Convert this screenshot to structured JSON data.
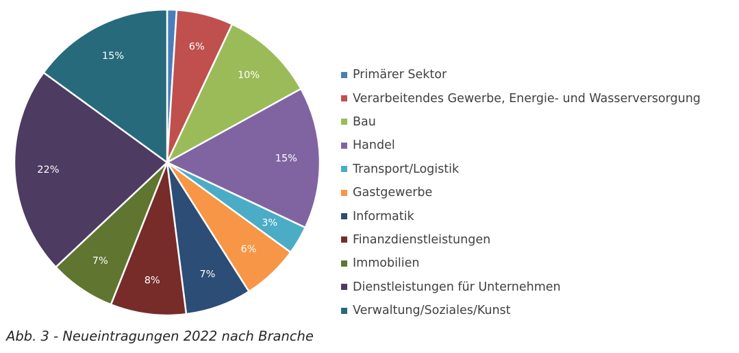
{
  "chart_data": {
    "type": "pie",
    "categories": [
      "Primärer Sektor",
      "Verarbeitendes Gewerbe, Energie- und Wasserversorgung",
      "Bau",
      "Handel",
      "Transport/Logistik",
      "Gastgewerbe",
      "Informatik",
      "Finanzdienstleistungen",
      "Immobilien",
      "Dienstleistungen für Unternehmen",
      "Verwaltung/Soziales/Kunst"
    ],
    "values": [
      1,
      6,
      10,
      15,
      3,
      6,
      7,
      8,
      7,
      22,
      15
    ],
    "data_labels": [
      "",
      "6%",
      "10%",
      "15%",
      "3%",
      "6%",
      "7%",
      "8%",
      "7%",
      "22%",
      "15%"
    ],
    "colors": [
      "#4a7ebb",
      "#c0504d",
      "#9bbb59",
      "#8064a2",
      "#4bacc6",
      "#f79646",
      "#2c4d75",
      "#772c2a",
      "#5f7530",
      "#4d3b62",
      "#276a7c"
    ],
    "start_angle": "12 o'clock",
    "direction": "clockwise",
    "legend_position": "right"
  },
  "caption": "Abb. 3 - Neueintragungen 2022 nach Branche"
}
